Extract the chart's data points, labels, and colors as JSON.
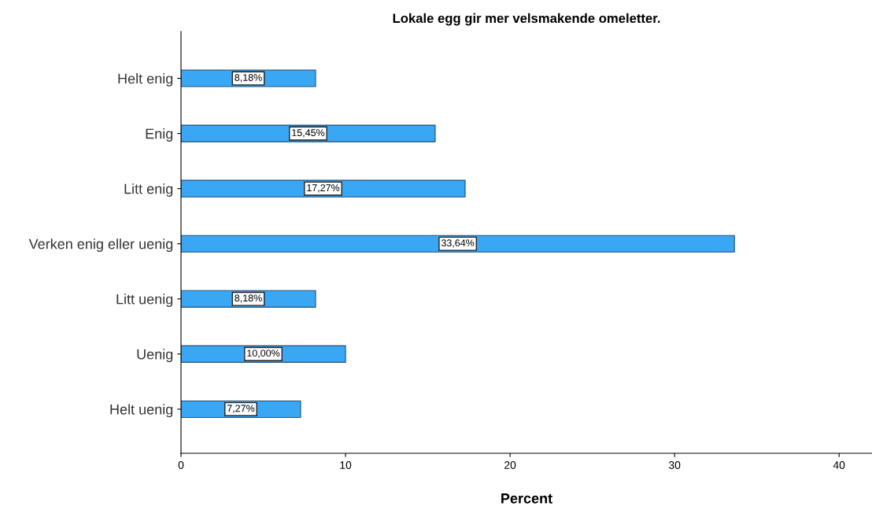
{
  "chart_data": {
    "type": "bar",
    "orientation": "horizontal",
    "title": "Lokale egg gir mer velsmakende omeletter.",
    "xlabel": "Percent",
    "categories": [
      "Helt enig",
      "Enig",
      "Litt enig",
      "Verken enig eller uenig",
      "Litt uenig",
      "Uenig",
      "Helt uenig"
    ],
    "values": [
      8.18,
      15.45,
      17.27,
      33.64,
      8.18,
      10.0,
      7.27
    ],
    "value_labels": [
      "8,18%",
      "15,45%",
      "17,27%",
      "33,64%",
      "8,18%",
      "10,00%",
      "7,27%"
    ],
    "color": "#3aa7f5",
    "xlim": [
      0,
      42
    ],
    "xticks": [
      0,
      10,
      20,
      30,
      40
    ],
    "grid": false,
    "legend": false
  }
}
